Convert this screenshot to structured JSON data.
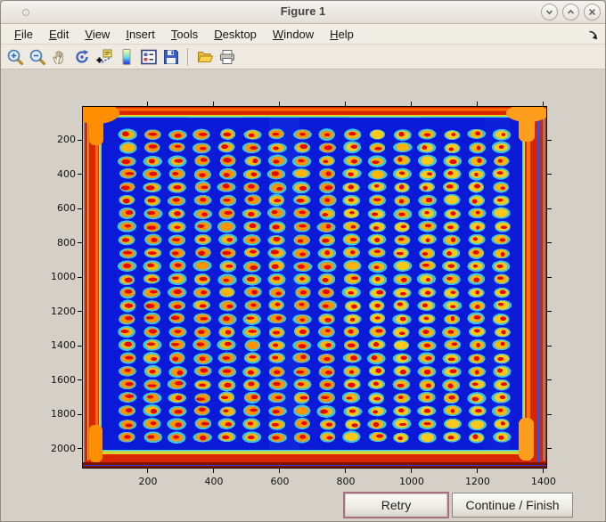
{
  "window": {
    "title": "Figure 1",
    "controls": [
      {
        "name": "minimize"
      },
      {
        "name": "maximize"
      },
      {
        "name": "close"
      }
    ]
  },
  "menu": {
    "items": [
      "File",
      "Edit",
      "View",
      "Insert",
      "Tools",
      "Desktop",
      "Window",
      "Help"
    ],
    "dock_icon": "dock-figure-arrow-icon"
  },
  "toolbar": {
    "buttons": [
      {
        "name": "zoom-in"
      },
      {
        "name": "zoom-out"
      },
      {
        "name": "pan"
      },
      {
        "name": "rotate-3d"
      },
      {
        "name": "data-cursor"
      },
      {
        "name": "insert-colorbar"
      },
      {
        "name": "insert-legend"
      },
      {
        "name": "save-figure"
      },
      {
        "name": "separator"
      },
      {
        "name": "open-file"
      },
      {
        "name": "print-figure"
      }
    ]
  },
  "chart_data": {
    "type": "heatmap",
    "title": "",
    "xlabel": "",
    "ylabel": "",
    "description": "Scanned microarray plate shown with jet colormap: dark blue field, saturated red/orange plate edges, regular grid of hybridization spots (cyan halo, orange-yellow body, red core)",
    "colormap": "jet",
    "xlim": [
      0,
      1411
    ],
    "ylim": [
      0,
      2115
    ],
    "xticks": [
      200,
      400,
      600,
      800,
      1000,
      1200,
      1400
    ],
    "yticks": [
      200,
      400,
      600,
      800,
      1000,
      1200,
      1400,
      1600,
      1800,
      2000
    ],
    "grid": {
      "rows": 24,
      "cols": 16,
      "x0": 51,
      "y0": 32,
      "dx": 28,
      "dy": 14.78
    },
    "colors": {
      "field_blue": "#0a1ad6",
      "edge_red": "#d92600",
      "edge_orange": "#ff8e00",
      "edge_yellow": "#ffd300",
      "halo_cyan": "#3fd9e8",
      "spot_center_red": "#e10000",
      "spot_bodies": [
        "#ff9400",
        "#ffb408",
        "#ffc91a"
      ]
    }
  },
  "actions": {
    "retry": "Retry",
    "continue": "Continue / Finish"
  }
}
